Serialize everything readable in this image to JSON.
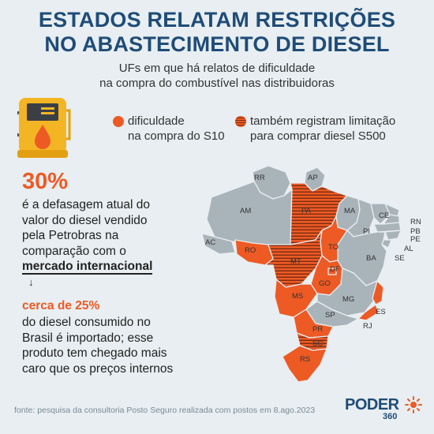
{
  "title": {
    "line1": "ESTADOS RELATAM RESTRIÇÕES",
    "line2": "NO ABASTECIMENTO DE DIESEL"
  },
  "subtitle": {
    "line1": "UFs em que há relatos de dificuldade",
    "line2": "na compra do combustível nas distribuidoras"
  },
  "legend": [
    {
      "line1": "dificuldade",
      "line2": "na compra do S10",
      "style": "solid",
      "color": "#ee5a24"
    },
    {
      "line1": "também registram limitação",
      "line2": "para comprar diesel S500",
      "style": "striped",
      "color": "#ee5a24"
    }
  ],
  "stat": {
    "value": "30%",
    "lines": [
      "é a defasagem atual do",
      "valor do diesel vendido",
      "pela Petrobras na",
      "comparação com o"
    ],
    "emphasis": "mercado internacional",
    "arrow": "↓",
    "import_share": "cerca de 25%",
    "import_lines": [
      "do diesel consumido no",
      "Brasil é importado; esse",
      "produto tem chegado mais",
      "caro que os preços internos"
    ]
  },
  "map": {
    "states_s10_and_s500": [
      "PA",
      "MT",
      "SC"
    ],
    "states_s10": [
      "TO",
      "DF",
      "GO",
      "MS",
      "PR",
      "RS",
      "RO",
      "ES"
    ],
    "labels": {
      "RR": "RR",
      "AP": "AP",
      "AM": "AM",
      "PA": "PA",
      "MA": "MA",
      "CE": "CE",
      "RN": "RN",
      "PB": "PB",
      "PE": "PE",
      "AL": "AL",
      "SE": "SE",
      "PI": "PI",
      "BA": "BA",
      "TO": "TO",
      "AC": "AC",
      "RO": "RO",
      "MT": "MT",
      "DF": "DF",
      "GO": "GO",
      "MG": "MG",
      "MS": "MS",
      "ES": "ES",
      "SP": "SP",
      "RJ": "RJ",
      "PR": "PR",
      "SC": "SC",
      "RS": "RS"
    },
    "colors": {
      "highlight": "#ee5a24",
      "stripe": "#7a2d12",
      "neutral": "#a9b3ba",
      "border": "#e8eef1"
    }
  },
  "footer": "fonte: pesquisa da consultoria Posto Seguro realizada com postos em 8.ago.2023",
  "logo": {
    "name": "PODER",
    "sub": "360"
  }
}
